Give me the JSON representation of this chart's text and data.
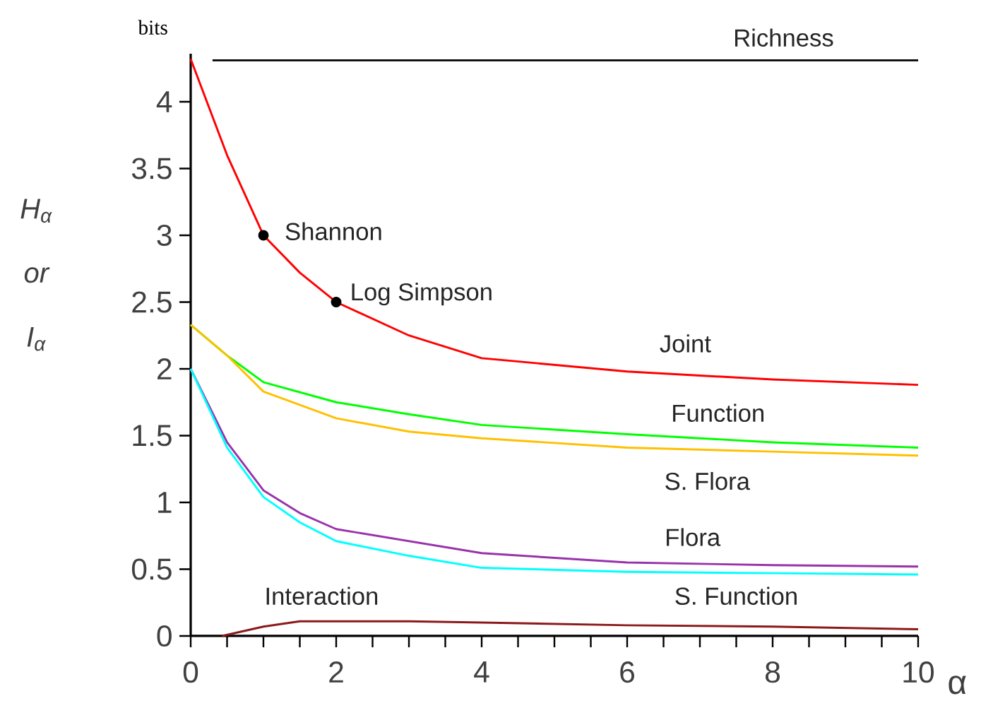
{
  "chart_data": {
    "type": "line",
    "xlabel": "α",
    "ylabel": "*H*$_{α}$ *or* *I*$_{α}$",
    "annotations": [
      "bits"
    ],
    "xlim": [
      0,
      10
    ],
    "ylim": [
      0,
      4.36
    ],
    "xticks": [
      0,
      {
        "value": 0.5,
        "label": null
      },
      {
        "value": 1,
        "label": null
      },
      {
        "value": 1.5,
        "label": null
      },
      2,
      {
        "value": 2.5,
        "label": null
      },
      {
        "value": 3,
        "label": null
      },
      {
        "value": 3.5,
        "label": null
      },
      4,
      {
        "value": 4.5,
        "label": null
      },
      {
        "value": 5,
        "label": null
      },
      {
        "value": 5.5,
        "label": null
      },
      6,
      {
        "value": 6.5,
        "label": null
      },
      {
        "value": 7,
        "label": null
      },
      {
        "value": 7.5,
        "label": null
      },
      8,
      {
        "value": 8.5,
        "label": null
      },
      {
        "value": 9,
        "label": null
      },
      {
        "value": 9.5,
        "label": null
      },
      10
    ],
    "yticks": [
      0,
      0.5,
      1,
      1.5,
      2,
      2.5,
      3,
      3.5,
      4
    ],
    "series": [
      {
        "name": "Richness",
        "color": "#000000",
        "x": [
          0.3,
          10
        ],
        "values": [
          4.31,
          4.31
        ]
      },
      {
        "name": "Joint",
        "color": "#ff0000",
        "x": [
          0,
          0.5,
          1,
          1.5,
          2,
          3,
          4,
          6,
          8,
          10
        ],
        "values": [
          4.32,
          3.6,
          3.0,
          2.72,
          2.5,
          2.25,
          2.08,
          1.98,
          1.92,
          1.88
        ]
      },
      {
        "name": "Function",
        "color": "#00ff00",
        "x": [
          0,
          0.5,
          1,
          2,
          3,
          4,
          6,
          8,
          10
        ],
        "values": [
          2.33,
          2.1,
          1.9,
          1.75,
          1.66,
          1.58,
          1.51,
          1.45,
          1.41
        ]
      },
      {
        "name": "S. Flora",
        "color": "#ffc000",
        "x": [
          0,
          0.5,
          1,
          2,
          3,
          4,
          6,
          8,
          10
        ],
        "values": [
          2.33,
          2.1,
          1.83,
          1.63,
          1.53,
          1.48,
          1.41,
          1.38,
          1.35
        ]
      },
      {
        "name": "Flora",
        "color": "#9933aa",
        "x": [
          0,
          0.5,
          1,
          1.5,
          2,
          3,
          4,
          6,
          8,
          10
        ],
        "values": [
          2.0,
          1.45,
          1.09,
          0.92,
          0.8,
          0.71,
          0.62,
          0.55,
          0.53,
          0.52
        ]
      },
      {
        "name": "S. Function",
        "color": "#00ffff",
        "x": [
          0,
          0.5,
          1,
          1.5,
          2,
          3,
          4,
          6,
          8,
          10
        ],
        "values": [
          2.0,
          1.41,
          1.04,
          0.85,
          0.71,
          0.6,
          0.51,
          0.48,
          0.47,
          0.46
        ]
      },
      {
        "name": "Interaction",
        "color": "#8b1a1a",
        "x": [
          0.43,
          1,
          1.5,
          2,
          3,
          4,
          6,
          8,
          10
        ],
        "values": [
          0,
          0.07,
          0.11,
          0.11,
          0.11,
          0.1,
          0.08,
          0.07,
          0.05
        ]
      },
      {
        "name": "Shannon",
        "type": "scatter",
        "marker": "circle",
        "color": "#000000",
        "x": [
          1
        ],
        "values": [
          3.0
        ]
      },
      {
        "name": "Log Simpson",
        "type": "scatter",
        "marker": "circle",
        "color": "#000000",
        "x": [
          2
        ],
        "values": [
          2.5
        ]
      }
    ]
  }
}
